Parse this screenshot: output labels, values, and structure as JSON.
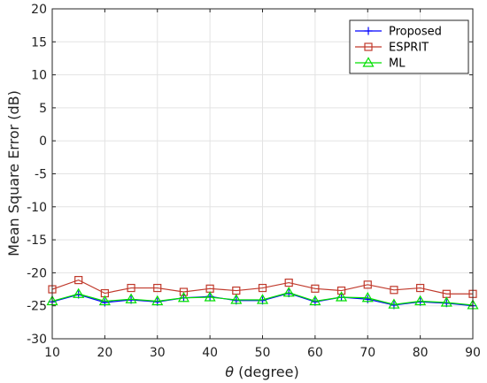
{
  "chart_data": {
    "type": "line",
    "title": "",
    "xlabel_symbol": "θ",
    "xlabel_unit": "(degree)",
    "ylabel": "Mean Square Error (dB)",
    "xlim": [
      10,
      90
    ],
    "ylim": [
      -30,
      20
    ],
    "xticks": [
      10,
      20,
      30,
      40,
      50,
      60,
      70,
      80,
      90
    ],
    "yticks": [
      20,
      15,
      10,
      5,
      0,
      -5,
      -10,
      -15,
      -20,
      -25,
      -30
    ],
    "grid": true,
    "legend_position": "top-right",
    "x": [
      10,
      15,
      20,
      25,
      30,
      35,
      40,
      45,
      50,
      55,
      60,
      65,
      70,
      75,
      80,
      85,
      90
    ],
    "series": [
      {
        "name": "Proposed",
        "color": "#0000ff",
        "marker": "plus",
        "values": [
          -24.4,
          -23.3,
          -24.5,
          -24.1,
          -24.4,
          -23.8,
          -23.6,
          -24.2,
          -24.2,
          -23.1,
          -24.4,
          -23.7,
          -24.0,
          -24.9,
          -24.4,
          -24.6,
          -25.0
        ]
      },
      {
        "name": "ESPRIT",
        "color": "#c0392b",
        "marker": "square",
        "values": [
          -22.5,
          -21.1,
          -23.1,
          -22.3,
          -22.3,
          -22.9,
          -22.4,
          -22.7,
          -22.3,
          -21.5,
          -22.4,
          -22.7,
          -21.8,
          -22.6,
          -22.3,
          -23.2,
          -23.2
        ]
      },
      {
        "name": "ML",
        "color": "#00e000",
        "marker": "triangle",
        "values": [
          -24.3,
          -23.2,
          -24.3,
          -24.0,
          -24.3,
          -23.8,
          -23.7,
          -24.1,
          -24.1,
          -23.0,
          -24.3,
          -23.7,
          -23.8,
          -24.8,
          -24.3,
          -24.5,
          -24.9
        ]
      }
    ]
  }
}
